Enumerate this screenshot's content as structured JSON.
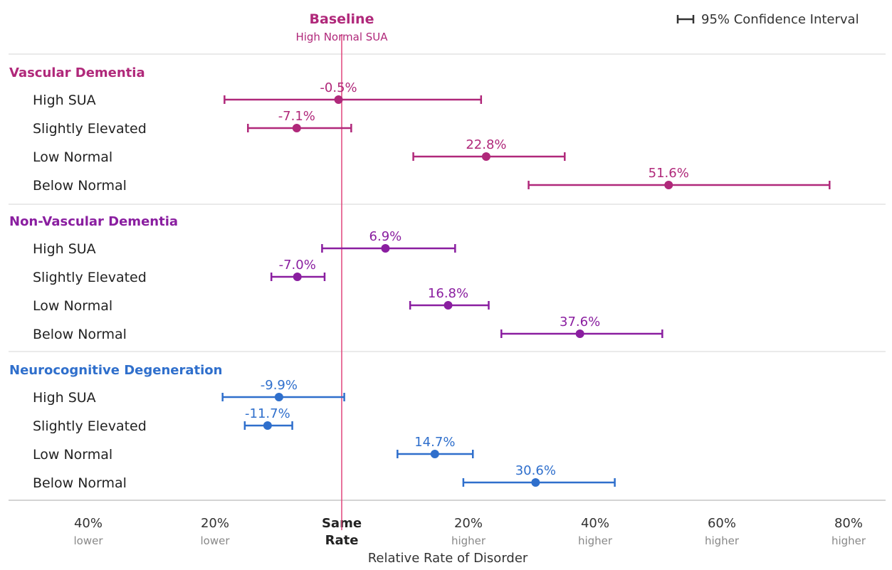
{
  "chart_data": {
    "type": "forest",
    "baseline": {
      "title": "Baseline",
      "subtitle": "High Normal SUA",
      "value": 0
    },
    "legend": {
      "label": "95% Confidence Interval",
      "placement": "top-right"
    },
    "xlabel": "Relative Rate of Disorder",
    "xlim": [
      -52,
      87
    ],
    "xticks": [
      {
        "value": -40,
        "main": "40%",
        "sub": "lower",
        "bold": false
      },
      {
        "value": -20,
        "main": "20%",
        "sub": "lower",
        "bold": false
      },
      {
        "value": 0,
        "main": "Same",
        "sub": "Rate",
        "bold": true
      },
      {
        "value": 20,
        "main": "20%",
        "sub": "higher",
        "bold": false
      },
      {
        "value": 40,
        "main": "40%",
        "sub": "higher",
        "bold": false
      },
      {
        "value": 60,
        "main": "60%",
        "sub": "higher",
        "bold": false
      },
      {
        "value": 80,
        "main": "80%",
        "sub": "higher",
        "bold": false
      }
    ],
    "groups": [
      {
        "name": "Vascular Dementia",
        "color": "#b0287a",
        "rows": [
          {
            "label": "High SUA",
            "value": -0.5,
            "value_label": "-0.5%",
            "ci": [
              -18.5,
              22.0
            ]
          },
          {
            "label": "Slightly Elevated",
            "value": -7.1,
            "value_label": "-7.1%",
            "ci": [
              -14.8,
              1.5
            ]
          },
          {
            "label": "Low Normal",
            "value": 22.8,
            "value_label": "22.8%",
            "ci": [
              11.3,
              35.2
            ]
          },
          {
            "label": "Below Normal",
            "value": 51.6,
            "value_label": "51.6%",
            "ci": [
              29.5,
              77.0
            ]
          }
        ]
      },
      {
        "name": "Non-Vascular Dementia",
        "color": "#8a1ea0",
        "rows": [
          {
            "label": "High SUA",
            "value": 6.9,
            "value_label": "6.9%",
            "ci": [
              -3.1,
              17.9
            ]
          },
          {
            "label": "Slightly Elevated",
            "value": -7.0,
            "value_label": "-7.0%",
            "ci": [
              -11.1,
              -2.7
            ]
          },
          {
            "label": "Low Normal",
            "value": 16.8,
            "value_label": "16.8%",
            "ci": [
              10.8,
              23.2
            ]
          },
          {
            "label": "Below Normal",
            "value": 37.6,
            "value_label": "37.6%",
            "ci": [
              25.2,
              50.6
            ]
          }
        ]
      },
      {
        "name": "Neurocognitive Degeneration",
        "color": "#2f6fcc",
        "rows": [
          {
            "label": "High SUA",
            "value": -9.9,
            "value_label": "-9.9%",
            "ci": [
              -18.8,
              0.4
            ]
          },
          {
            "label": "Slightly Elevated",
            "value": -11.7,
            "value_label": "-11.7%",
            "ci": [
              -15.3,
              -7.8
            ]
          },
          {
            "label": "Low Normal",
            "value": 14.7,
            "value_label": "14.7%",
            "ci": [
              8.8,
              20.7
            ]
          },
          {
            "label": "Below Normal",
            "value": 30.6,
            "value_label": "30.6%",
            "ci": [
              19.2,
              43.1
            ]
          }
        ]
      }
    ]
  }
}
